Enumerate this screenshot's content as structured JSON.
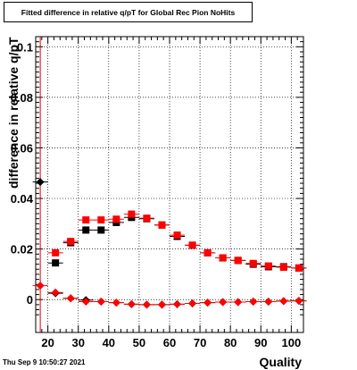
{
  "title": "Fitted difference in relative q/pT for Global Rec Pion NoHits",
  "footer": "Thu Sep  9 10:50:27 2021",
  "chart_data": {
    "type": "scatter",
    "title": "Fitted difference in relative q/pT for Global Rec Pion NoHits",
    "xlabel": "Quality",
    "ylabel": "difference in relative q/pT",
    "xlim": [
      16,
      104
    ],
    "ylim": [
      -0.013,
      0.104
    ],
    "xticks": [
      20,
      30,
      40,
      50,
      60,
      70,
      80,
      90,
      100
    ],
    "yticks": [
      0,
      0.02,
      0.04,
      0.06,
      0.08,
      0.1
    ],
    "ytick_labels": [
      "0",
      "0.02",
      "0.04",
      "0.06",
      "0.08",
      "0.1"
    ],
    "grid": true,
    "vertical_line_x": 17.5,
    "colors": {
      "black": "#000000",
      "red": "#ff0000",
      "line": "#dd0000"
    },
    "series": [
      {
        "marker": "square",
        "color": "#000000",
        "x": [
          22.5,
          27.5,
          32.5,
          37.5,
          42.5,
          47.5,
          52.5,
          57.5,
          62.5,
          67.5,
          72.5,
          77.5,
          82.5,
          87.5,
          92.5,
          97.5,
          102.5
        ],
        "y": [
          0.0145,
          0.0225,
          0.0275,
          0.0275,
          0.0305,
          0.0325,
          0.032,
          0.0295,
          0.025,
          0.0215,
          0.0185,
          0.0165,
          0.0155,
          0.014,
          0.013,
          0.013,
          0.0125
        ]
      },
      {
        "marker": "square",
        "color": "#ff0000",
        "x": [
          22.5,
          27.5,
          32.5,
          37.5,
          42.5,
          47.5,
          52.5,
          57.5,
          62.5,
          67.5,
          72.5,
          77.5,
          82.5,
          87.5,
          92.5,
          97.5,
          102.5
        ],
        "y": [
          0.0185,
          0.023,
          0.0315,
          0.0315,
          0.0318,
          0.0338,
          0.0322,
          0.0295,
          0.0255,
          0.0215,
          0.0185,
          0.0165,
          0.0155,
          0.0143,
          0.0133,
          0.0128,
          0.0125
        ]
      },
      {
        "marker": "diamond",
        "color": "#000000",
        "x": [
          17.5,
          22.5,
          27.5,
          32.5,
          37.5,
          42.5,
          47.5,
          52.5,
          57.5,
          62.5,
          67.5,
          72.5,
          77.5,
          82.5,
          87.5,
          92.5,
          97.5,
          102.5
        ],
        "y": [
          0.0465,
          0.0025,
          0.0005,
          -0.0002,
          -0.0008,
          -0.0012,
          -0.0018,
          -0.002,
          -0.002,
          -0.0018,
          -0.0015,
          -0.0012,
          -0.001,
          -0.001,
          -0.0008,
          -0.0008,
          -0.0006,
          -0.0005
        ]
      },
      {
        "marker": "diamond",
        "color": "#ff0000",
        "x": [
          17.5,
          22.5,
          27.5,
          32.5,
          37.5,
          42.5,
          47.5,
          52.5,
          57.5,
          62.5,
          67.5,
          72.5,
          77.5,
          82.5,
          87.5,
          92.5,
          97.5,
          102.5
        ],
        "y": [
          0.0055,
          0.0028,
          0.0005,
          -0.0008,
          -0.0008,
          -0.0012,
          -0.0018,
          -0.002,
          -0.002,
          -0.0018,
          -0.0015,
          -0.0012,
          -0.001,
          -0.001,
          -0.0008,
          -0.0008,
          -0.0006,
          -0.0005
        ]
      }
    ]
  }
}
